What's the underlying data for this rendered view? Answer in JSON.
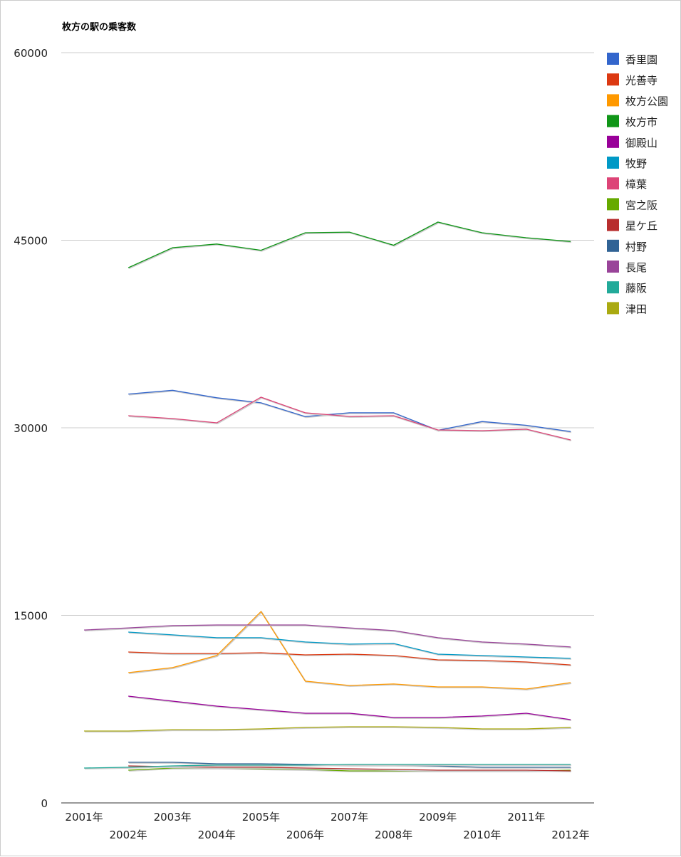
{
  "chart_data": {
    "type": "line",
    "title": "枚方の駅の乗客数",
    "xlabel": "",
    "ylabel": "",
    "ylim": [
      0,
      60000
    ],
    "yticks": [
      "0",
      "15000",
      "30000",
      "45000",
      "60000"
    ],
    "grid": true,
    "legend": "right",
    "categories": [
      "2001年",
      "2002年",
      "2003年",
      "2004年",
      "2005年",
      "2006年",
      "2007年",
      "2008年",
      "2009年",
      "2010年",
      "2011年",
      "2012年"
    ],
    "series": [
      {
        "name": "香里園",
        "color": "#3366cc",
        "values": [
          null,
          32700,
          33000,
          32400,
          32000,
          30900,
          31200,
          31200,
          29800,
          30500,
          30200,
          29700
        ]
      },
      {
        "name": "光善寺",
        "color": "#dc3912",
        "values": [
          null,
          12070,
          11950,
          11950,
          12010,
          11840,
          11900,
          11790,
          11440,
          11390,
          11270,
          11040
        ]
      },
      {
        "name": "枚方公園",
        "color": "#ff9900",
        "values": [
          null,
          10420,
          10820,
          11790,
          15310,
          9740,
          9390,
          9510,
          9280,
          9280,
          9110,
          9620
        ]
      },
      {
        "name": "枚方市",
        "color": "#109618",
        "values": [
          null,
          42800,
          44400,
          44700,
          44200,
          45600,
          45650,
          44600,
          46450,
          45600,
          45200,
          44900
        ]
      },
      {
        "name": "御殿山",
        "color": "#990099",
        "values": [
          null,
          8540,
          8140,
          7740,
          7460,
          7170,
          7170,
          6830,
          6830,
          6950,
          7170,
          6660
        ]
      },
      {
        "name": "牧野",
        "color": "#0099c6",
        "values": [
          null,
          13660,
          13440,
          13210,
          13210,
          12870,
          12700,
          12750,
          11900,
          11790,
          11670,
          11560
        ]
      },
      {
        "name": "樟葉",
        "color": "#dd4477",
        "values": [
          null,
          30970,
          30740,
          30400,
          32450,
          31200,
          30910,
          30970,
          29830,
          29770,
          29890,
          29030
        ]
      },
      {
        "name": "宮之阪",
        "color": "#66aa00",
        "values": [
          null,
          2620,
          2790,
          2790,
          2730,
          2680,
          2560,
          2560,
          2560,
          2560,
          2560,
          2620
        ]
      },
      {
        "name": "星ケ丘",
        "color": "#b82e2e",
        "values": [
          null,
          2960,
          2900,
          2850,
          2850,
          2790,
          2730,
          2680,
          2620,
          2620,
          2620,
          2560
        ]
      },
      {
        "name": "村野",
        "color": "#316395",
        "values": [
          null,
          3250,
          3250,
          3130,
          3130,
          3080,
          3020,
          3020,
          2960,
          2850,
          2850,
          2850
        ]
      },
      {
        "name": "長尾",
        "color": "#994499",
        "values": [
          13830,
          14000,
          14180,
          14230,
          14230,
          14230,
          14000,
          13780,
          13210,
          12870,
          12700,
          12470
        ]
      },
      {
        "name": "藤阪",
        "color": "#22aa99",
        "values": [
          2790,
          2850,
          2960,
          3020,
          3020,
          3020,
          3080,
          3080,
          3080,
          3080,
          3080,
          3080
        ]
      },
      {
        "name": "津田",
        "color": "#aaaa11",
        "values": [
          5750,
          5750,
          5860,
          5860,
          5920,
          6040,
          6090,
          6090,
          6040,
          5920,
          5920,
          6040
        ]
      }
    ]
  }
}
